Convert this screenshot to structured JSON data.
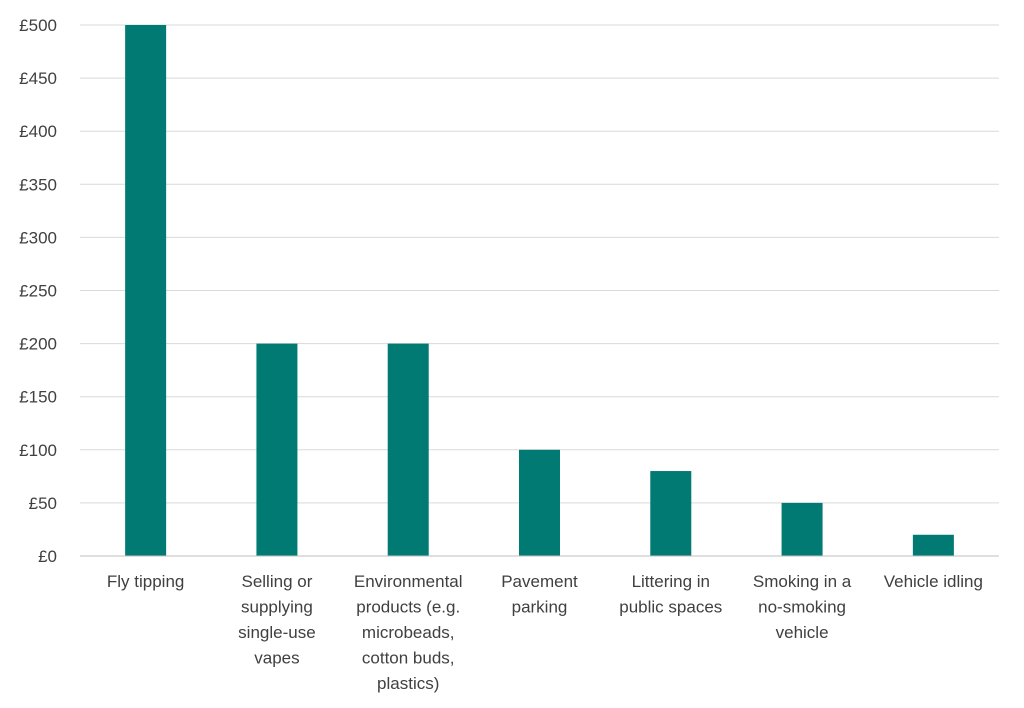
{
  "chart_data": {
    "type": "bar",
    "categories": [
      [
        "Fly tipping"
      ],
      [
        "Selling or",
        "supplying",
        "single-use",
        "vapes"
      ],
      [
        "Environmental",
        "products (e.g.",
        "microbeads,",
        "cotton buds,",
        "plastics)"
      ],
      [
        "Pavement",
        "parking"
      ],
      [
        "Littering in",
        "public spaces"
      ],
      [
        "Smoking in a",
        "no-smoking",
        "vehicle"
      ],
      [
        "Vehicle idling"
      ]
    ],
    "values": [
      500,
      200,
      200,
      100,
      80,
      50,
      20
    ],
    "ylim": [
      0,
      500
    ],
    "yticks": [
      0,
      50,
      100,
      150,
      200,
      250,
      300,
      350,
      400,
      450,
      500
    ],
    "ytick_labels": [
      "£0",
      "£50",
      "£100",
      "£150",
      "£200",
      "£250",
      "£300",
      "£350",
      "£400",
      "£450",
      "£500"
    ],
    "bar_color": "#007a73",
    "grid": true,
    "legend": "none"
  }
}
